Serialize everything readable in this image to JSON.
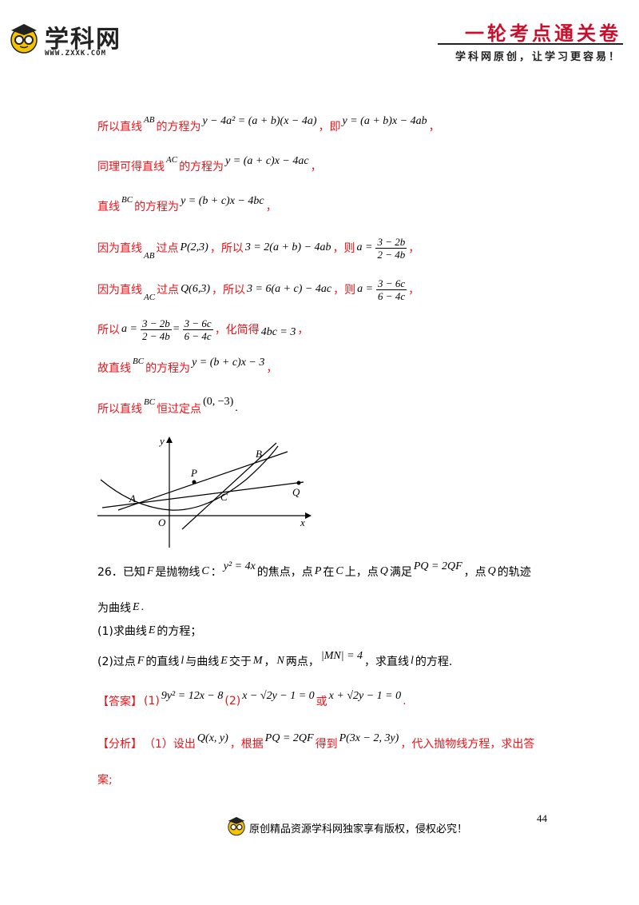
{
  "header": {
    "logo_text": "学科网",
    "logo_url_text": "WWW.ZXXK.COM",
    "title": "一轮考点通关卷",
    "slogan": "学科网原创，让学习更容易！"
  },
  "solution": {
    "l1_a": "所以直线",
    "l1_ab": "AB",
    "l1_b": "的方程为",
    "l1_eq1": "y − 4a² = (a + b)(x − 4a)",
    "l1_c": "，即",
    "l1_eq2": "y = (a + b)x − 4ab",
    "l1_d": "，",
    "l2_a": "同理可得直线",
    "l2_ac": "AC",
    "l2_b": "的方程为",
    "l2_eq": "y = (a + c)x − 4ac",
    "l2_c": "，",
    "l3_a": "直线",
    "l3_bc": "BC",
    "l3_b": "的方程为",
    "l3_eq": "y = (b + c)x − 4bc",
    "l3_c": "，",
    "l4_a": "因为直线",
    "l4_ab": "AB",
    "l4_b": "过点",
    "l4_p": "P(2,3)",
    "l4_c": "，所以",
    "l4_eq": "3 = 2(a + b) − 4ab",
    "l4_d": "，则",
    "l4_lhs": "a =",
    "l4_num": "3 − 2b",
    "l4_den": "2 − 4b",
    "l4_e": "，",
    "l5_a": "因为直线",
    "l5_ac": "AC",
    "l5_b": "过点",
    "l5_q": "Q(6,3)",
    "l5_c": "，所以",
    "l5_eq": "3 = 6(a + c) − 4ac",
    "l5_d": "，则",
    "l5_lhs": "a =",
    "l5_num": "3 − 6c",
    "l5_den": "6 − 4c",
    "l5_e": "，",
    "l6_a": "所以",
    "l6_lhs": "a =",
    "l6_n1": "3 − 2b",
    "l6_d1": "2 − 4b",
    "l6_eq": "=",
    "l6_n2": "3 − 6c",
    "l6_d2": "6 − 4c",
    "l6_b": "，化简得",
    "l6_res": "4bc = 3",
    "l6_c": "，",
    "l7_a": "故直线",
    "l7_bc": "BC",
    "l7_b": "的方程为",
    "l7_eq": "y = (b + c)x − 3",
    "l7_c": "，",
    "l8_a": "所以直线",
    "l8_bc": "BC",
    "l8_b": "恒过定点",
    "l8_pt": "(0, −3)",
    "l8_c": "."
  },
  "figure": {
    "label_y": "y",
    "label_x": "x",
    "label_o": "O",
    "label_a": "A",
    "label_b": "B",
    "label_c": "C",
    "label_p": "P",
    "label_q": "Q"
  },
  "problem": {
    "num": "26．已知",
    "f": "F",
    "t1": "是抛物线",
    "c": "C",
    "t2": "：",
    "eq": "y² = 4x",
    "t3": "的焦点，点",
    "p": "P",
    "t4": "在",
    "c2": "C",
    "t5": "上，点",
    "q": "Q",
    "t6": "满足",
    "vec": "PQ = 2QF",
    "t7": "，点",
    "q2": "Q",
    "t8": "的轨迹",
    "line2_a": "为曲线",
    "e": "E",
    "line2_b": ".",
    "part1_a": "(1)求曲线",
    "part1_e": "E",
    "part1_b": "的方程；",
    "part2_a": "(2)过点",
    "part2_f": "F",
    "part2_b": "的直线",
    "part2_l": "l",
    "part2_c": "与曲线",
    "part2_e": "E",
    "part2_d": "交于",
    "part2_m": "M",
    "part2_e2": "，",
    "part2_n": "N",
    "part2_f2": "两点，",
    "part2_mn": "|MN| = 4",
    "part2_g": "，求直线",
    "part2_l2": "l",
    "part2_h": "的方程."
  },
  "answer": {
    "tag": "【答案】",
    "p1": "(1)",
    "eq1": "9y² = 12x − 8",
    "p2": "(2)",
    "eq2": "x − √2y − 1 = 0",
    "or": "或",
    "eq3": "x + √2y − 1 = 0",
    "end": "."
  },
  "analysis": {
    "tag": "【分析】",
    "t1": "（1）设出",
    "q": "Q(x, y)",
    "t2": "，根据",
    "vec": "PQ = 2QF",
    "t3": "得到",
    "p": "P(3x − 2, 3y)",
    "t4": "，代入抛物线方程，求出答",
    "t5": "案;"
  },
  "footer": {
    "page": "44",
    "text": "原创精品资源学科网独家享有版权，侵权必究！"
  }
}
